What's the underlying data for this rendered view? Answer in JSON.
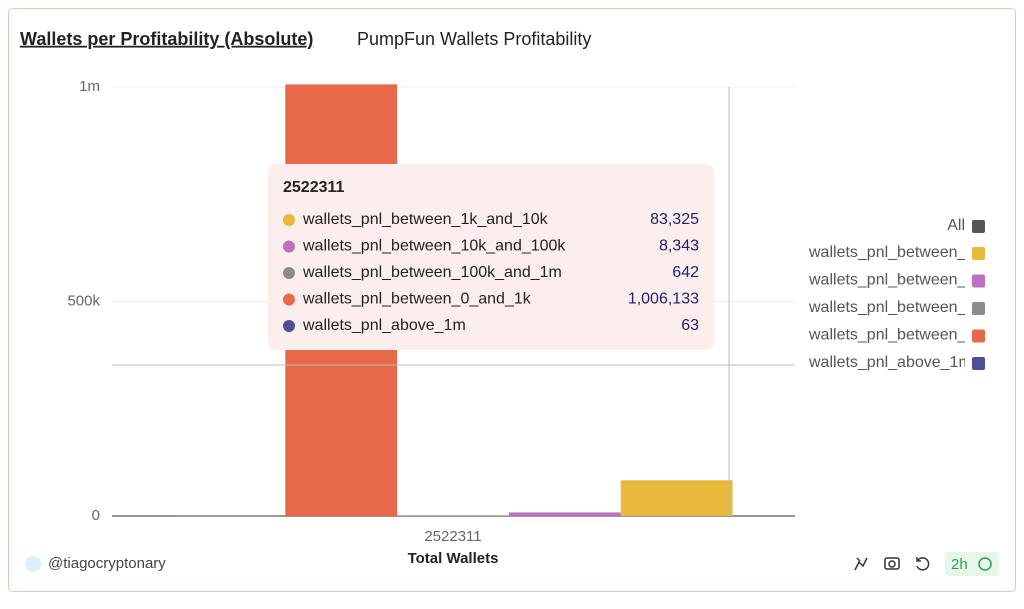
{
  "chart_data": {
    "type": "bar",
    "title": "Wallets per Profitability (Absolute)",
    "subtitle": "PumpFun Wallets Profitability",
    "xlabel": "Total Wallets",
    "categories": [
      "2522311"
    ],
    "series": [
      {
        "name": "wallets_pnl_between_1k_and_10k",
        "color": "#e8b93a",
        "values": [
          83325
        ],
        "value_labels": [
          "83,325"
        ]
      },
      {
        "name": "wallets_pnl_between_10k_and_100k",
        "color": "#c06fc0",
        "values": [
          8343
        ],
        "value_labels": [
          "8,343"
        ]
      },
      {
        "name": "wallets_pnl_between_100k_and_1m",
        "color": "#8c8c8c",
        "values": [
          642
        ]
      },
      {
        "name": "wallets_pnl_between_0_and_1k",
        "color": "#e8684a",
        "values": [
          1006133
        ],
        "value_labels": [
          "1,006,133"
        ]
      },
      {
        "name": "wallets_pnl_above_1m",
        "color": "#4e4e9a",
        "values": [
          63
        ]
      }
    ],
    "ylim": [
      0,
      1000000
    ],
    "yticks": [
      0,
      {
        "value": 500000,
        "label": "500k"
      },
      {
        "value": 1000000,
        "label": "1m"
      }
    ],
    "grid": true,
    "legend": "right",
    "legend_all": "All"
  },
  "author": "@tiagocryptonary",
  "age": "2h"
}
